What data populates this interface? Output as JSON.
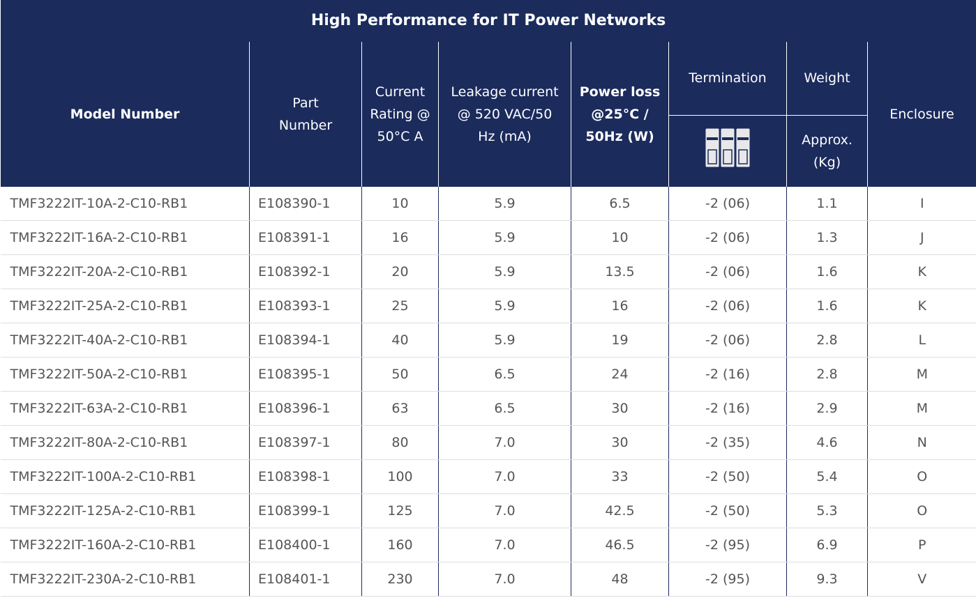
{
  "title": "High Performance for IT Power Networks",
  "header": {
    "model_number": "Model Number",
    "part_number": "Part Number",
    "current_rating": "Current Rating @ 50°C A",
    "leakage": "Leakage current @ 520 VAC/50 Hz (mA)",
    "power_loss": "Power loss @25°C / 50Hz (W)",
    "termination": "Termination",
    "weight": "Weight",
    "weight_unit": "Approx. (Kg)",
    "enclosure": "Enclosure"
  },
  "rows": [
    [
      "TMF3222IT-10A-2-C10-RB1",
      "E108390-1",
      "10",
      "5.9",
      "6.5",
      "-2 (06)",
      "1.1",
      "I"
    ],
    [
      "TMF3222IT-16A-2-C10-RB1",
      "E108391-1",
      "16",
      "5.9",
      "10",
      "-2 (06)",
      "1.3",
      "J"
    ],
    [
      "TMF3222IT-20A-2-C10-RB1",
      "E108392-1",
      "20",
      "5.9",
      "13.5",
      "-2 (06)",
      "1.6",
      "K"
    ],
    [
      "TMF3222IT-25A-2-C10-RB1",
      "E108393-1",
      "25",
      "5.9",
      "16",
      "-2 (06)",
      "1.6",
      "K"
    ],
    [
      "TMF3222IT-40A-2-C10-RB1",
      "E108394-1",
      "40",
      "5.9",
      "19",
      "-2 (06)",
      "2.8",
      "L"
    ],
    [
      "TMF3222IT-50A-2-C10-RB1",
      "E108395-1",
      "50",
      "6.5",
      "24",
      "-2 (16)",
      "2.8",
      "M"
    ],
    [
      "TMF3222IT-63A-2-C10-RB1",
      "E108396-1",
      "63",
      "6.5",
      "30",
      "-2 (16)",
      "2.9",
      "M"
    ],
    [
      "TMF3222IT-80A-2-C10-RB1",
      "E108397-1",
      "80",
      "7.0",
      "30",
      "-2 (35)",
      "4.6",
      "N"
    ],
    [
      "TMF3222IT-100A-2-C10-RB1",
      "E108398-1",
      "100",
      "7.0",
      "33",
      "-2 (50)",
      "5.4",
      "O"
    ],
    [
      "TMF3222IT-125A-2-C10-RB1",
      "E108399-1",
      "125",
      "7.0",
      "42.5",
      "-2 (50)",
      "5.3",
      "O"
    ],
    [
      "TMF3222IT-160A-2-C10-RB1",
      "E108400-1",
      "160",
      "7.0",
      "46.5",
      "-2 (95)",
      "6.9",
      "P"
    ],
    [
      "TMF3222IT-230A-2-C10-RB1",
      "E108401-1",
      "230",
      "7.0",
      "48",
      "-2 (95)",
      "9.3",
      "V"
    ]
  ]
}
